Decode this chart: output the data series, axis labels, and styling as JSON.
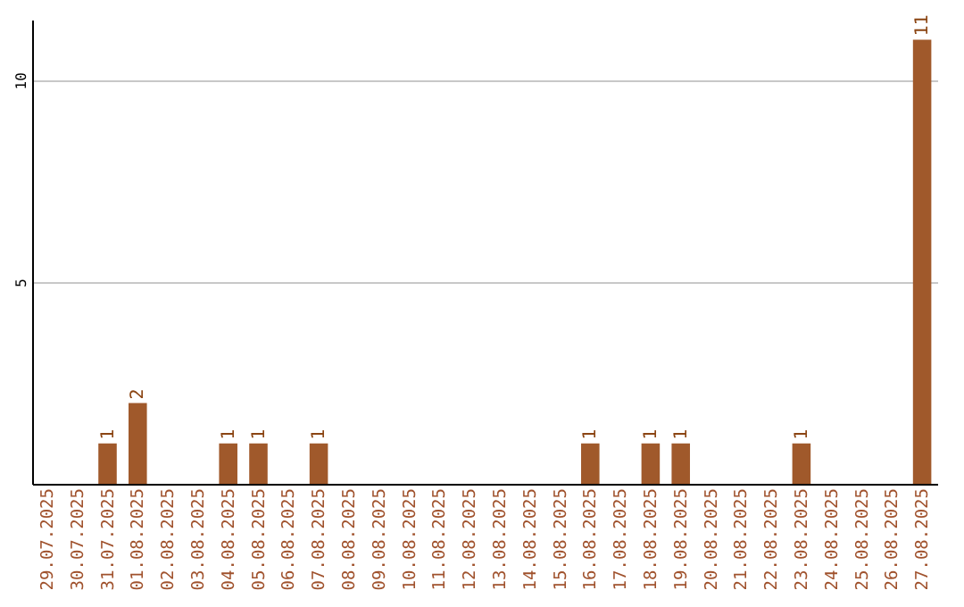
{
  "chart_data": {
    "type": "bar",
    "categories": [
      "29.07.2025",
      "30.07.2025",
      "31.07.2025",
      "01.08.2025",
      "02.08.2025",
      "03.08.2025",
      "04.08.2025",
      "05.08.2025",
      "06.08.2025",
      "07.08.2025",
      "08.08.2025",
      "09.08.2025",
      "10.08.2025",
      "11.08.2025",
      "12.08.2025",
      "13.08.2025",
      "14.08.2025",
      "15.08.2025",
      "16.08.2025",
      "17.08.2025",
      "18.08.2025",
      "19.08.2025",
      "20.08.2025",
      "21.08.2025",
      "22.08.2025",
      "23.08.2025",
      "24.08.2025",
      "25.08.2025",
      "26.08.2025",
      "27.08.2025"
    ],
    "values": [
      0,
      0,
      1,
      2,
      0,
      0,
      1,
      1,
      0,
      1,
      0,
      0,
      0,
      0,
      0,
      0,
      0,
      0,
      1,
      0,
      1,
      1,
      0,
      0,
      0,
      1,
      0,
      0,
      0,
      11
    ],
    "value_labels": [
      null,
      null,
      "1",
      "2",
      null,
      null,
      "1",
      "1",
      null,
      "1",
      null,
      null,
      null,
      null,
      null,
      null,
      null,
      null,
      "1",
      null,
      "1",
      "1",
      null,
      null,
      null,
      "1",
      null,
      null,
      null,
      "11"
    ],
    "color": "#a0592b",
    "ylim": [
      0,
      11.5
    ],
    "yticks": [
      5,
      10
    ],
    "grid": "y"
  }
}
